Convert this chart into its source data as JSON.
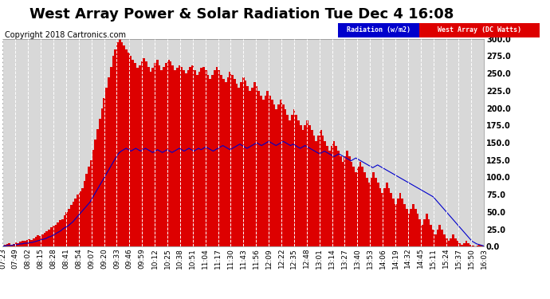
{
  "title": "West Array Power & Solar Radiation Tue Dec 4 16:08",
  "copyright": "Copyright 2018 Cartronics.com",
  "ylim": [
    0,
    300
  ],
  "yticks": [
    0.0,
    25.0,
    50.0,
    75.0,
    100.0,
    125.0,
    150.0,
    175.0,
    200.0,
    225.0,
    250.0,
    275.0,
    300.0
  ],
  "background_color": "#ffffff",
  "plot_bg_color": "#d8d8d8",
  "grid_color": "#ffffff",
  "legend_radiation_label": "Radiation (w/m2)",
  "legend_west_label": "West Array (DC Watts)",
  "legend_radiation_bg": "#0000cc",
  "legend_west_bg": "#dd0000",
  "radiation_color": "#0000cc",
  "west_array_color": "#dd0000",
  "title_fontsize": 13,
  "tick_fontsize": 6.5,
  "copyright_fontsize": 7,
  "x_labels": [
    "07:23",
    "07:49",
    "08:02",
    "08:15",
    "08:28",
    "08:41",
    "08:54",
    "09:07",
    "09:20",
    "09:33",
    "09:46",
    "09:59",
    "10:12",
    "10:25",
    "10:38",
    "10:51",
    "11:04",
    "11:17",
    "11:30",
    "11:43",
    "11:56",
    "12:09",
    "12:22",
    "12:35",
    "12:48",
    "13:01",
    "13:14",
    "13:27",
    "13:40",
    "13:53",
    "14:06",
    "14:19",
    "14:32",
    "14:45",
    "15:11",
    "15:24",
    "15:37",
    "15:50",
    "16:03"
  ],
  "west_array_values": [
    2,
    3,
    4,
    5,
    3,
    4,
    6,
    5,
    7,
    9,
    8,
    10,
    11,
    10,
    12,
    14,
    16,
    15,
    18,
    20,
    22,
    25,
    28,
    30,
    32,
    35,
    38,
    40,
    45,
    50,
    55,
    60,
    65,
    70,
    75,
    80,
    85,
    95,
    105,
    115,
    125,
    140,
    155,
    170,
    185,
    200,
    215,
    230,
    245,
    260,
    275,
    285,
    295,
    300,
    295,
    290,
    285,
    280,
    275,
    270,
    265,
    258,
    262,
    268,
    272,
    268,
    260,
    252,
    258,
    265,
    270,
    262,
    255,
    260,
    265,
    270,
    268,
    262,
    255,
    258,
    262,
    260,
    255,
    250,
    255,
    260,
    262,
    255,
    248,
    252,
    258,
    260,
    255,
    248,
    242,
    248,
    255,
    260,
    255,
    248,
    242,
    238,
    245,
    252,
    248,
    242,
    235,
    230,
    238,
    245,
    240,
    232,
    225,
    230,
    238,
    232,
    225,
    218,
    212,
    218,
    225,
    218,
    212,
    205,
    198,
    205,
    212,
    205,
    198,
    190,
    182,
    190,
    198,
    190,
    182,
    175,
    168,
    175,
    182,
    175,
    168,
    160,
    152,
    160,
    168,
    160,
    152,
    145,
    138,
    145,
    152,
    145,
    138,
    130,
    122,
    130,
    138,
    130,
    122,
    115,
    108,
    115,
    122,
    115,
    108,
    100,
    92,
    100,
    108,
    100,
    92,
    85,
    78,
    85,
    92,
    85,
    78,
    70,
    62,
    70,
    78,
    70,
    62,
    55,
    48,
    55,
    62,
    55,
    48,
    40,
    32,
    40,
    48,
    40,
    32,
    25,
    18,
    25,
    32,
    25,
    18,
    12,
    8,
    12,
    18,
    12,
    8,
    5,
    3,
    5,
    8,
    5,
    3,
    2,
    1,
    2,
    3,
    2,
    1
  ],
  "radiation_values": [
    1,
    1,
    2,
    2,
    2,
    3,
    3,
    4,
    4,
    5,
    5,
    6,
    6,
    7,
    8,
    9,
    10,
    11,
    12,
    14,
    15,
    17,
    19,
    21,
    23,
    26,
    28,
    30,
    33,
    36,
    40,
    44,
    48,
    52,
    56,
    60,
    64,
    70,
    76,
    82,
    88,
    94,
    100,
    106,
    112,
    118,
    124,
    130,
    135,
    138,
    140,
    142,
    140,
    138,
    140,
    142,
    140,
    138,
    140,
    142,
    140,
    138,
    136,
    138,
    140,
    138,
    136,
    138,
    140,
    138,
    136,
    138,
    140,
    142,
    140,
    138,
    140,
    142,
    140,
    138,
    140,
    142,
    140,
    142,
    144,
    142,
    140,
    138,
    140,
    142,
    144,
    146,
    144,
    142,
    140,
    142,
    144,
    146,
    148,
    146,
    144,
    142,
    144,
    146,
    148,
    150,
    148,
    146,
    148,
    150,
    152,
    150,
    148,
    146,
    148,
    150,
    152,
    150,
    148,
    146,
    148,
    146,
    144,
    142,
    144,
    146,
    144,
    142,
    140,
    138,
    136,
    134,
    136,
    138,
    136,
    134,
    132,
    130,
    132,
    134,
    132,
    130,
    128,
    126,
    124,
    126,
    128,
    126,
    124,
    122,
    120,
    118,
    116,
    114,
    116,
    118,
    116,
    114,
    112,
    110,
    108,
    106,
    104,
    102,
    100,
    98,
    96,
    94,
    92,
    90,
    88,
    86,
    84,
    82,
    80,
    78,
    76,
    74,
    72,
    68,
    64,
    60,
    56,
    52,
    48,
    44,
    40,
    36,
    32,
    28,
    24,
    20,
    16,
    12,
    8,
    6,
    4,
    3,
    2,
    1
  ]
}
